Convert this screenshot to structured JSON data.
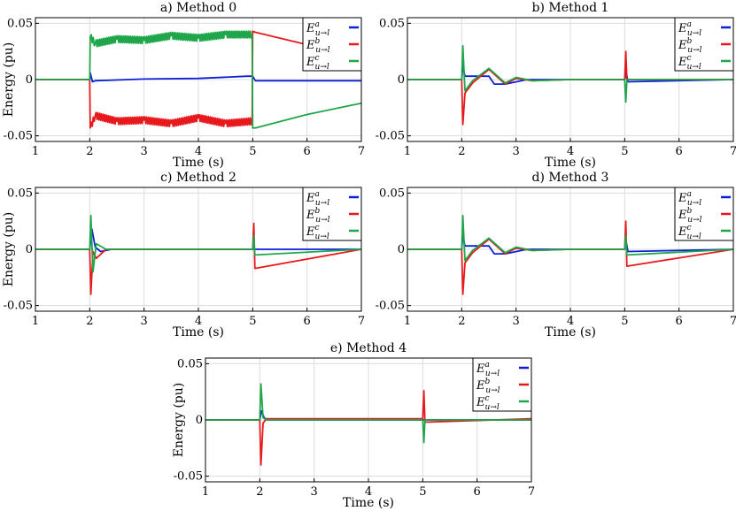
{
  "series_colors": {
    "a": "#0a1fd6",
    "b": "#e8191c",
    "c": "#1fa64a"
  },
  "chart_data": [
    {
      "type": "line",
      "title": "a) Method 0",
      "xlabel": "Time (s)",
      "ylabel": "Energy (pu)",
      "xlim": [
        1,
        7
      ],
      "ylim": [
        -0.055,
        0.055
      ],
      "xticks": [
        "1",
        "2",
        "3",
        "4",
        "5",
        "6",
        "7"
      ],
      "yticks": [
        "0.05",
        "0",
        "-0.05"
      ],
      "grid": true,
      "legend_position": "top-right",
      "legend": [
        {
          "base": "E",
          "sup": "a",
          "sub": "u→l"
        },
        {
          "base": "E",
          "sup": "b",
          "sub": "u→l"
        },
        {
          "base": "E",
          "sup": "c",
          "sub": "u→l"
        }
      ],
      "series": [
        {
          "key": "a",
          "x": [
            1,
            2,
            2.01,
            2.05,
            2.1,
            3,
            4,
            4.9,
            5,
            5.05,
            5.2,
            7
          ],
          "y": [
            0,
            0,
            0.006,
            -0.002,
            -0.001,
            0.0005,
            0.001,
            0.003,
            0.003,
            -0.001,
            -0.001,
            -0.001
          ]
        },
        {
          "key": "b",
          "x": [
            1,
            2,
            2.01,
            2.1,
            2.5,
            3,
            3.5,
            4,
            4.5,
            4.99,
            5,
            5.05,
            6,
            7
          ],
          "y": [
            0,
            0,
            -0.043,
            -0.032,
            -0.037,
            -0.036,
            -0.039,
            -0.034,
            -0.039,
            -0.037,
            0.043,
            0.042,
            0.031,
            0.021
          ]
        },
        {
          "key": "c",
          "x": [
            1,
            2,
            2.01,
            2.1,
            2.5,
            3,
            3.5,
            4,
            4.5,
            4.99,
            5,
            5.05,
            6,
            7
          ],
          "y": [
            0,
            0,
            0.038,
            0.032,
            0.036,
            0.035,
            0.039,
            0.037,
            0.04,
            0.04,
            -0.043,
            -0.043,
            -0.031,
            -0.021
          ]
        }
      ]
    },
    {
      "type": "line",
      "title": "b) Method 1",
      "xlabel": "Time (s)",
      "ylabel": "",
      "xlim": [
        1,
        7
      ],
      "ylim": [
        -0.055,
        0.055
      ],
      "xticks": [
        "1",
        "2",
        "3",
        "4",
        "5",
        "6",
        "7"
      ],
      "yticks": [
        "0.05",
        "0",
        "-0.05"
      ],
      "grid": true,
      "legend_position": "top-right",
      "legend": [
        {
          "base": "E",
          "sup": "a",
          "sub": "u→l"
        },
        {
          "base": "E",
          "sup": "b",
          "sub": "u→l"
        },
        {
          "base": "E",
          "sup": "c",
          "sub": "u→l"
        }
      ],
      "series": [
        {
          "key": "a",
          "x": [
            1,
            2,
            2.02,
            2.06,
            2.2,
            2.5,
            2.6,
            2.8,
            3.2,
            4,
            5,
            5.03,
            5.06,
            7
          ],
          "y": [
            0,
            0,
            0.012,
            0.003,
            0.003,
            0.003,
            -0.004,
            -0.004,
            0,
            0,
            0,
            0.006,
            -0.002,
            0
          ]
        },
        {
          "key": "b",
          "x": [
            1,
            2,
            2.02,
            2.06,
            2.2,
            2.5,
            2.8,
            3,
            3.3,
            4,
            5,
            5.02,
            5.04,
            7
          ],
          "y": [
            0,
            0,
            -0.04,
            -0.012,
            -0.003,
            0.009,
            -0.004,
            0.001,
            -0.001,
            0,
            0,
            0.025,
            0,
            0
          ]
        },
        {
          "key": "c",
          "x": [
            1,
            2,
            2.02,
            2.06,
            2.2,
            2.5,
            2.8,
            3,
            3.3,
            4,
            5,
            5.02,
            5.04,
            7
          ],
          "y": [
            0,
            0,
            0.03,
            -0.01,
            -0.001,
            0.01,
            -0.003,
            0.002,
            -0.001,
            0,
            0,
            -0.02,
            0,
            0
          ]
        }
      ]
    },
    {
      "type": "line",
      "title": "c) Method 2",
      "xlabel": "Time (s)",
      "ylabel": "Energy (pu)",
      "xlim": [
        1,
        7
      ],
      "ylim": [
        -0.055,
        0.055
      ],
      "xticks": [
        "1",
        "2",
        "3",
        "4",
        "5",
        "6",
        "7"
      ],
      "yticks": [
        "0.05",
        "0",
        "-0.05"
      ],
      "grid": true,
      "legend_position": "top-right",
      "legend": [
        {
          "base": "E",
          "sup": "a",
          "sub": "u→l"
        },
        {
          "base": "E",
          "sup": "b",
          "sub": "u→l"
        },
        {
          "base": "E",
          "sup": "c",
          "sub": "u→l"
        }
      ],
      "series": [
        {
          "key": "a",
          "x": [
            1,
            2,
            2.04,
            2.1,
            2.2,
            2.4,
            7
          ],
          "y": [
            0,
            0,
            0.018,
            0.002,
            -0.002,
            0,
            0
          ]
        },
        {
          "key": "b",
          "x": [
            1,
            2,
            2.02,
            2.06,
            2.12,
            2.3,
            5,
            5.02,
            5.04,
            7
          ],
          "y": [
            0,
            0,
            -0.04,
            -0.002,
            -0.008,
            0,
            0,
            0.023,
            -0.017,
            0
          ]
        },
        {
          "key": "c",
          "x": [
            1,
            2,
            2.02,
            2.06,
            2.12,
            2.3,
            5,
            5.02,
            5.04,
            7
          ],
          "y": [
            0,
            0,
            0.03,
            -0.02,
            0.005,
            0,
            0,
            0.012,
            -0.005,
            0
          ]
        }
      ]
    },
    {
      "type": "line",
      "title": "d) Method 3",
      "xlabel": "Time (s)",
      "ylabel": "",
      "xlim": [
        1,
        7
      ],
      "ylim": [
        -0.055,
        0.055
      ],
      "xticks": [
        "1",
        "2",
        "3",
        "4",
        "5",
        "6",
        "7"
      ],
      "yticks": [
        "0.05",
        "0",
        "-0.05"
      ],
      "grid": true,
      "legend_position": "top-right",
      "legend": [
        {
          "base": "E",
          "sup": "a",
          "sub": "u→l"
        },
        {
          "base": "E",
          "sup": "b",
          "sub": "u→l"
        },
        {
          "base": "E",
          "sup": "c",
          "sub": "u→l"
        }
      ],
      "series": [
        {
          "key": "a",
          "x": [
            1,
            2,
            2.02,
            2.06,
            2.2,
            2.5,
            2.6,
            2.8,
            3.2,
            4,
            5,
            5.03,
            5.06,
            7
          ],
          "y": [
            0,
            0,
            0.012,
            0.003,
            0.003,
            0.003,
            -0.004,
            -0.004,
            0,
            0,
            0,
            0.006,
            -0.002,
            0
          ]
        },
        {
          "key": "b",
          "x": [
            1,
            2,
            2.02,
            2.06,
            2.2,
            2.5,
            2.8,
            3,
            3.3,
            4,
            5,
            5.02,
            5.04,
            7
          ],
          "y": [
            0,
            0,
            -0.04,
            -0.012,
            -0.003,
            0.009,
            -0.004,
            0.001,
            -0.001,
            0,
            0,
            0.025,
            -0.015,
            0
          ]
        },
        {
          "key": "c",
          "x": [
            1,
            2,
            2.02,
            2.06,
            2.2,
            2.5,
            2.8,
            3,
            3.3,
            4,
            5,
            5.02,
            5.04,
            7
          ],
          "y": [
            0,
            0,
            0.03,
            -0.01,
            -0.001,
            0.01,
            -0.003,
            0.002,
            -0.001,
            0,
            0,
            0.012,
            -0.005,
            0
          ]
        }
      ]
    },
    {
      "type": "line",
      "title": "e) Method 4",
      "xlabel": "Time (s)",
      "ylabel": "Energy (pu)",
      "xlim": [
        1,
        7
      ],
      "ylim": [
        -0.055,
        0.055
      ],
      "xticks": [
        "1",
        "2",
        "3",
        "4",
        "5",
        "6",
        "7"
      ],
      "yticks": [
        "0.05",
        "0",
        "-0.05"
      ],
      "grid": true,
      "legend_position": "top-right",
      "legend": [
        {
          "base": "E",
          "sup": "a",
          "sub": "u→l"
        },
        {
          "base": "E",
          "sup": "b",
          "sub": "u→l"
        },
        {
          "base": "E",
          "sup": "c",
          "sub": "u→l"
        }
      ],
      "series": [
        {
          "key": "a",
          "x": [
            1,
            2,
            2.03,
            2.08,
            2.15,
            7
          ],
          "y": [
            0,
            0,
            0.008,
            0.002,
            0,
            0
          ]
        },
        {
          "key": "b",
          "x": [
            1,
            2,
            2.02,
            2.06,
            2.12,
            2.3,
            5,
            5.02,
            5.04,
            7
          ],
          "y": [
            0,
            0,
            -0.04,
            -0.003,
            0.001,
            0.001,
            0.001,
            0.026,
            -0.002,
            0.001
          ]
        },
        {
          "key": "c",
          "x": [
            1,
            2,
            2.02,
            2.06,
            2.12,
            2.3,
            5,
            5.02,
            5.04,
            7
          ],
          "y": [
            0,
            0,
            0.032,
            0.002,
            0,
            0,
            0,
            -0.02,
            0,
            0
          ]
        }
      ]
    }
  ]
}
